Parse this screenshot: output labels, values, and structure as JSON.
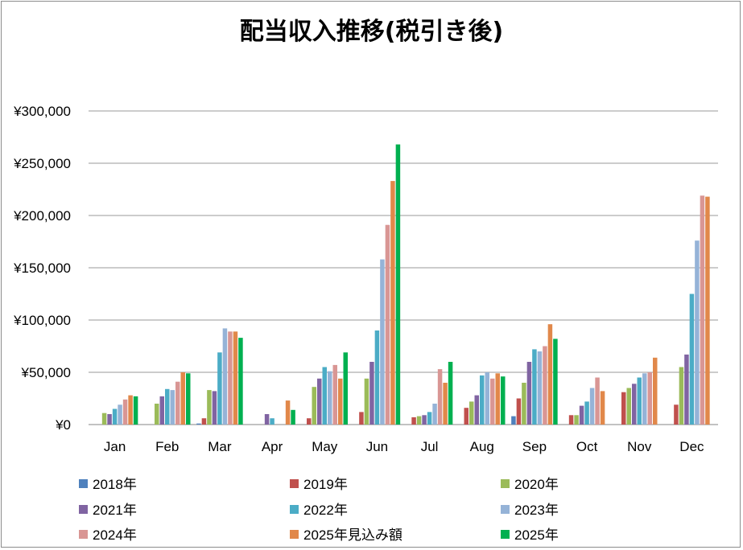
{
  "chart_data": {
    "type": "bar",
    "title": "配当収入推移(税引き後)",
    "xlabel": "",
    "ylabel": "",
    "ylim": [
      0,
      300000
    ],
    "y_ticks": [
      "¥0",
      "¥50,000",
      "¥100,000",
      "¥150,000",
      "¥200,000",
      "¥250,000",
      "¥300,000"
    ],
    "grid": "horizontal",
    "legend_position": "bottom",
    "categories": [
      "Jan",
      "Feb",
      "Mar",
      "Apr",
      "May",
      "Jun",
      "Jul",
      "Aug",
      "Sep",
      "Oct",
      "Nov",
      "Dec"
    ],
    "series": [
      {
        "name": "2018年",
        "color": "#4f81bd",
        "values": [
          0,
          0,
          1000,
          0,
          0,
          0,
          0,
          0,
          8000,
          0,
          0,
          0
        ]
      },
      {
        "name": "2019年",
        "color": "#c0504d",
        "values": [
          0,
          0,
          6000,
          0,
          6000,
          12000,
          7000,
          16000,
          25000,
          9000,
          31000,
          19000
        ]
      },
      {
        "name": "2020年",
        "color": "#9bbb59",
        "values": [
          11000,
          20000,
          33000,
          0,
          36000,
          44000,
          8000,
          22000,
          40000,
          9000,
          35000,
          55000
        ]
      },
      {
        "name": "2021年",
        "color": "#8064a2",
        "values": [
          10000,
          27000,
          32000,
          10000,
          44000,
          60000,
          9000,
          28000,
          60000,
          18000,
          39000,
          67000
        ]
      },
      {
        "name": "2022年",
        "color": "#4bacc6",
        "values": [
          15000,
          34000,
          69000,
          6000,
          55000,
          90000,
          12000,
          47000,
          72000,
          22000,
          45000,
          125000
        ]
      },
      {
        "name": "2023年",
        "color": "#95b3d7",
        "values": [
          19000,
          33000,
          92000,
          0,
          51000,
          158000,
          20000,
          50000,
          70000,
          35000,
          49000,
          176000
        ]
      },
      {
        "name": "2024年",
        "color": "#d99694",
        "values": [
          24000,
          41000,
          89000,
          0,
          57000,
          191000,
          53000,
          44000,
          75000,
          45000,
          50000,
          219000
        ]
      },
      {
        "name": "2025年見込み額",
        "color": "#e1884a",
        "values": [
          28000,
          50000,
          89000,
          23000,
          44000,
          233000,
          40000,
          49000,
          96000,
          32000,
          64000,
          218000
        ]
      },
      {
        "name": "2025年",
        "color": "#00b050",
        "values": [
          27000,
          49000,
          83000,
          14000,
          69000,
          268000,
          60000,
          46000,
          82000,
          0,
          0,
          0
        ]
      }
    ]
  }
}
